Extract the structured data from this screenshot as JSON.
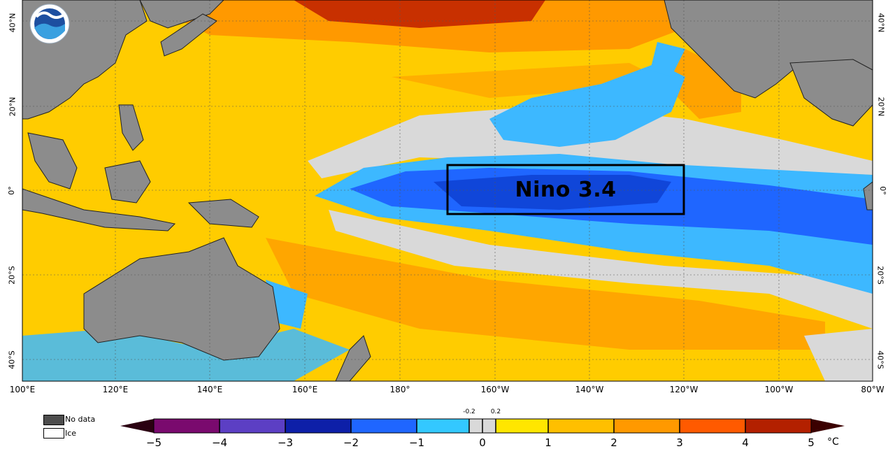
{
  "logo": {
    "text": "NOAA",
    "icon": "noaa-logo-icon"
  },
  "region_box": {
    "label": "Nino 3.4"
  },
  "latitude_labels_left": [
    "40°N",
    "20°N",
    "0°",
    "20°S",
    "40°S"
  ],
  "latitude_labels_right": [
    "40°N",
    "20°N",
    "0°",
    "20°S",
    "40°S"
  ],
  "longitude_labels": [
    "100°E",
    "120°E",
    "140°E",
    "160°E",
    "180°",
    "160°W",
    "140°W",
    "120°W",
    "100°W",
    "80°W"
  ],
  "legend": {
    "no_data": {
      "label": "No data",
      "color": "#4d4d4d"
    },
    "ice": {
      "label": "Ice",
      "color": "#ffffff"
    }
  },
  "colorbar": {
    "unit": "°C",
    "ticks": [
      "−5",
      "−4",
      "−3",
      "−2",
      "−1",
      "0",
      "1",
      "2",
      "3",
      "4",
      "5"
    ],
    "near_zero_labels": [
      "-0.2",
      "0.2"
    ],
    "colors": {
      "under": "#2a0011",
      "m5_m4": "#7a0a6e",
      "m4_m3": "#5c3fc4",
      "m3_m2": "#0d1fa8",
      "m2_m1": "#1f66ff",
      "m1_m02": "#33c8ff",
      "neutral": "#d9d9d9",
      "p02_p1": "#ffe600",
      "p1_p2": "#ffbf00",
      "p2_p3": "#ff9900",
      "p3_p4": "#ff5a00",
      "p4_p5": "#b32000",
      "over": "#3b0000"
    }
  },
  "map_colors": {
    "land": "#8c8c8c",
    "ocean_warm": "#ffcc00",
    "ocean_neutral": "#d9d9d9",
    "ocean_cool": "#3db8ff",
    "ocean_cold": "#1f66ff"
  }
}
